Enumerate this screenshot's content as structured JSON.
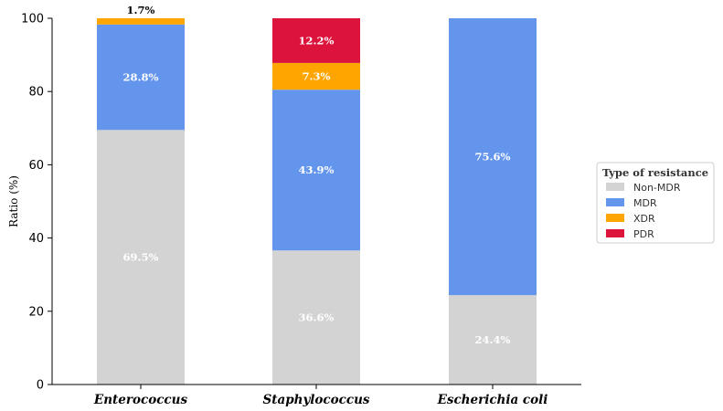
{
  "chart_data": {
    "type": "bar",
    "stacked": true,
    "ylabel": "Ratio (%)",
    "ylim": [
      0,
      100
    ],
    "yticks": [
      0,
      20,
      40,
      60,
      80,
      100
    ],
    "categories": [
      "Enterococcus",
      "Staphylococcus",
      "Escherichia coli"
    ],
    "series": [
      {
        "name": "Non-MDR",
        "color": "#d3d3d3",
        "values": [
          69.5,
          36.6,
          24.4
        ],
        "labels": [
          "69.5%",
          "36.6%",
          "24.4%"
        ]
      },
      {
        "name": "MDR",
        "color": "#6495ed",
        "values": [
          28.8,
          43.9,
          75.6
        ],
        "labels": [
          "28.8%",
          "43.9%",
          "75.6%"
        ]
      },
      {
        "name": "XDR",
        "color": "#ffa500",
        "values": [
          1.7,
          7.3,
          0
        ],
        "labels": [
          "1.7%",
          "7.3%",
          ""
        ]
      },
      {
        "name": "PDR",
        "color": "#dc143c",
        "values": [
          0,
          12.2,
          0
        ],
        "labels": [
          "",
          "12.2%",
          ""
        ]
      }
    ],
    "legend": {
      "title": "Type of resistance",
      "position": "right"
    },
    "grid": false
  }
}
